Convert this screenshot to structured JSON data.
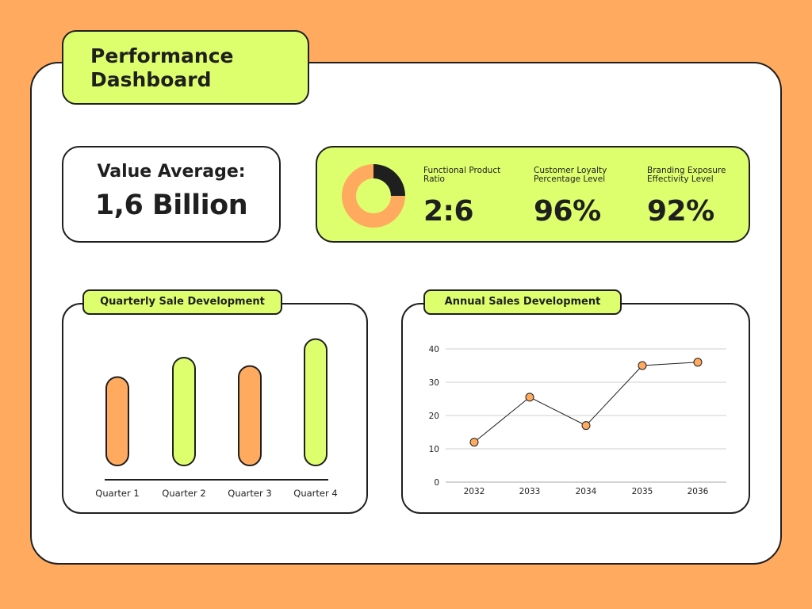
{
  "title": "Performance Dashboard",
  "value_average": {
    "label": "Value Average:",
    "value": "1,6 Billion"
  },
  "kpis": [
    {
      "label": "Functional Product Ratio",
      "value": "2:6"
    },
    {
      "label": "Customer Loyalty Percentage Level",
      "value": "96%"
    },
    {
      "label": "Branding Exposure Effectivity Level",
      "value": "92%"
    }
  ],
  "colors": {
    "orange": "#FFAA5E",
    "lime": "#DDFF6E",
    "dark": "#1f1f1f"
  },
  "chart_data": [
    {
      "type": "pie",
      "categories": [
        "dark",
        "orange"
      ],
      "values": [
        2,
        6
      ]
    },
    {
      "type": "bar",
      "title": "Quarterly Sale Development",
      "categories": [
        "Quarter 1",
        "Quarter 2",
        "Quarter 3",
        "Quarter 4"
      ],
      "values": [
        105,
        128,
        118,
        150
      ],
      "bar_colors": [
        "#FFAA5E",
        "#DDFF6E",
        "#FFAA5E",
        "#DDFF6E"
      ],
      "grid": false
    },
    {
      "type": "line",
      "title": "Annual Sales Development",
      "x": [
        "2032",
        "2033",
        "2034",
        "2035",
        "2036"
      ],
      "values": [
        12,
        25.5,
        17,
        35,
        36
      ],
      "ylim": [
        0,
        40
      ],
      "yticks": [
        "0",
        "10",
        "20",
        "30",
        "40"
      ],
      "grid": true
    }
  ]
}
